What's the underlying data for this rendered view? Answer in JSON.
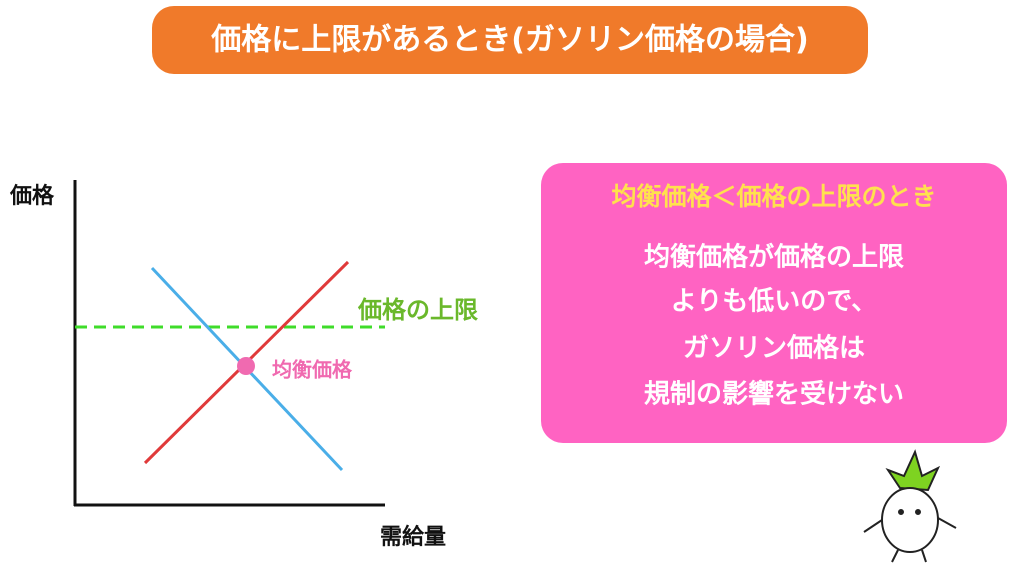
{
  "header": {
    "title": "価格に上限があるとき(ガソリン価格の場合)"
  },
  "diagram": {
    "y_axis_label": "価格",
    "x_axis_label": "需給量",
    "ceiling_label": "価格の上限",
    "equilibrium_label": "均衡価格"
  },
  "callout": {
    "heading": "均衡価格＜価格の上限のとき",
    "lines": [
      "均衡価格が価格の上限",
      "よりも低いので、",
      "ガソリン価格は",
      "規制の影響を受けない"
    ]
  }
}
